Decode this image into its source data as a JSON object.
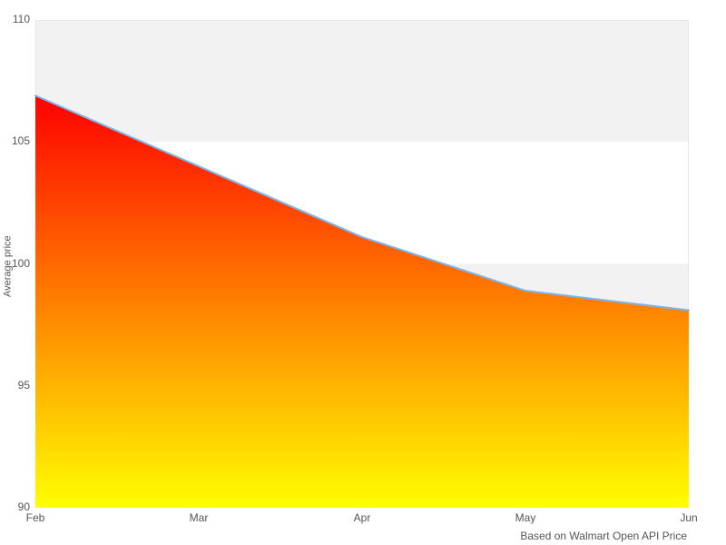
{
  "chart_data": {
    "type": "area",
    "title": "",
    "xlabel": "",
    "ylabel": "Average price",
    "categories": [
      "Feb",
      "Mar",
      "Apr",
      "May",
      "Jun"
    ],
    "values": [
      106.9,
      104.0,
      101.1,
      98.9,
      98.1
    ],
    "series_name": "Average price",
    "ylim": [
      90,
      110
    ],
    "yticks": [
      110,
      105,
      100,
      95,
      90
    ],
    "grid": "alternating horizontal plot bands, no gridlines",
    "legend": "none",
    "credits": "Based on Walmart Open API Price",
    "colors": {
      "line": "#7cb5ec",
      "area_gradient_top": "#ff0000",
      "area_gradient_bottom": "#ffff00",
      "band_gray": "#f2f2f2",
      "band_white": "#ffffff",
      "plot_border": "#e6e6e6",
      "label_text": "#555555"
    }
  }
}
